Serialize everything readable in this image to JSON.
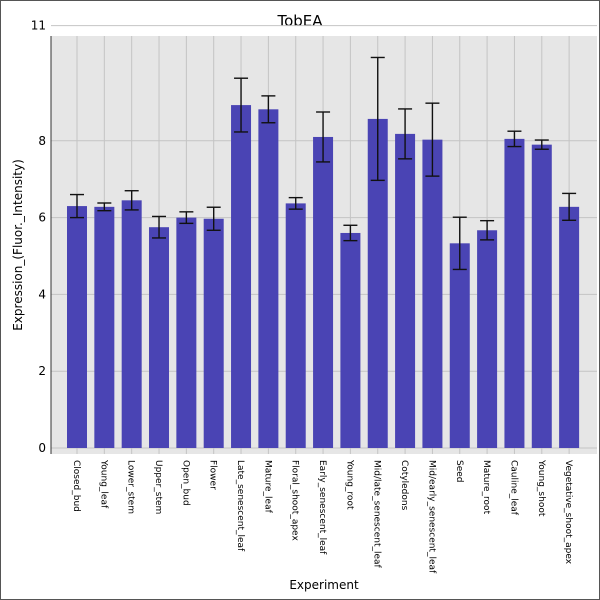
{
  "chart_data": {
    "type": "bar",
    "title": "TobEA",
    "xlabel": "Experiment",
    "ylabel": "Expression_(Fluor._Intensity)",
    "ylim": [
      0,
      11.2
    ],
    "yticks": [
      0,
      2,
      4,
      6,
      8,
      11
    ],
    "grid": true,
    "colors": {
      "bar": "#4a44b4",
      "background": "#e6e6e6",
      "grid": "#c4c4c4"
    },
    "categories": [
      "Closed_bud",
      "Young_leaf",
      "Lower_stem",
      "Upper_stem",
      "Open_bud",
      "Flower",
      "Late_senescent_leaf",
      "Mature_leaf",
      "Floral_shoot_apex",
      "Early_senescent_leaf",
      "Young_root",
      "Mid/late_senescent_leaf",
      "Cotyledons",
      "Mid/early_senescent_leaf",
      "Seed",
      "Mature_root",
      "Cauline_leaf",
      "Young_shoot",
      "Vegetative_shoot_apex"
    ],
    "values": [
      6.3,
      6.28,
      6.45,
      5.75,
      6.0,
      5.97,
      8.93,
      8.82,
      6.37,
      8.1,
      5.6,
      8.57,
      8.18,
      8.03,
      5.33,
      5.67,
      8.05,
      7.9,
      6.28
    ],
    "error": [
      0.3,
      0.1,
      0.25,
      0.28,
      0.15,
      0.3,
      0.7,
      0.35,
      0.15,
      0.65,
      0.2,
      1.6,
      0.65,
      0.95,
      0.68,
      0.25,
      0.2,
      0.12,
      0.35
    ]
  }
}
